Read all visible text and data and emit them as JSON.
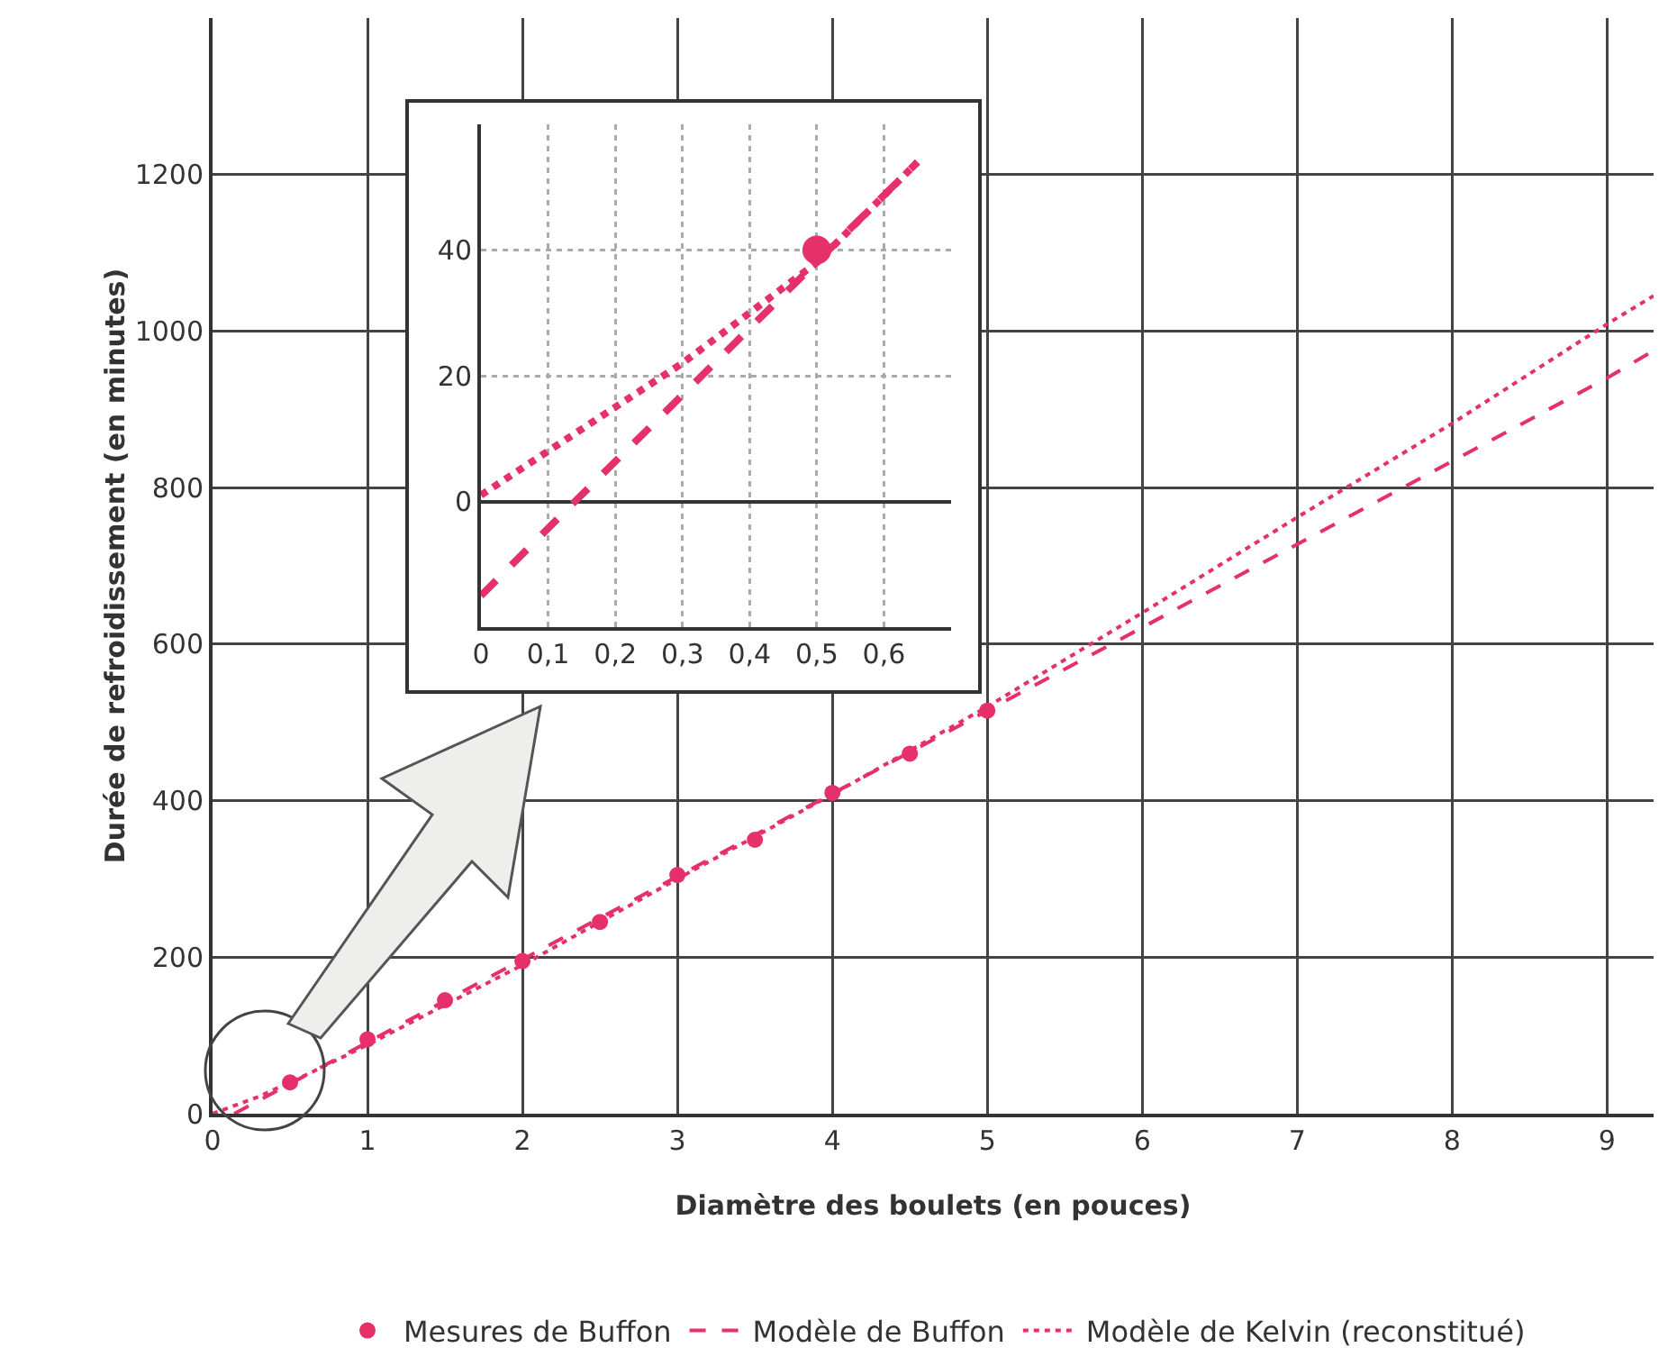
{
  "chart_data": [
    {
      "type": "line",
      "xlabel": "Diamètre des boulets (en pouces)",
      "ylabel": "Durée de refroidissement (en minutes)",
      "xlim": [
        0,
        9.3
      ],
      "xticks": [
        0,
        1,
        2,
        3,
        4,
        5,
        6,
        7,
        8,
        9
      ],
      "ylim": [
        0,
        1400
      ],
      "yticks": [
        0,
        200,
        400,
        600,
        800,
        1000,
        1200
      ],
      "grid": true,
      "legend": "bottom",
      "series": [
        {
          "name": "Mesures de Buffon",
          "type": "scatter",
          "marker": "circle",
          "color": "#e5306a",
          "x": [
            0.5,
            1,
            1.5,
            2,
            2.5,
            3,
            3.5,
            4,
            4.5,
            5
          ],
          "values": [
            40,
            95,
            145,
            195,
            245,
            305,
            350,
            410,
            460,
            515
          ]
        },
        {
          "name": "Modèle de Buffon",
          "line_style": "dashed",
          "color": "#e5306a",
          "x": [
            0.14,
            5,
            9,
            9.3
          ],
          "values": [
            0,
            515,
            940,
            975
          ]
        },
        {
          "name": "Modèle de Kelvin (reconstitué)",
          "line_style": "dotted",
          "color": "#e5306a",
          "x": [
            0,
            0.3,
            0.64,
            1,
            2,
            3,
            4,
            5,
            6,
            7,
            8,
            9,
            9.3
          ],
          "values": [
            0,
            22,
            53,
            88,
            190,
            300,
            408,
            520,
            640,
            762,
            882,
            1009,
            1045
          ]
        }
      ]
    },
    {
      "type": "line",
      "xlim": [
        0,
        0.7
      ],
      "xticks": [
        0,
        {
          "value": 0.1,
          "label": "0,1"
        },
        {
          "value": 0.2,
          "label": "0,2"
        },
        {
          "value": 0.3,
          "label": "0,3"
        },
        {
          "value": 0.4,
          "label": "0,4"
        },
        {
          "value": 0.5,
          "label": "0,5"
        },
        {
          "value": 0.6,
          "label": "0,6"
        }
      ],
      "ylim": [
        -20,
        60
      ],
      "yticks": [
        0,
        20,
        40
      ],
      "grid": true,
      "series": [
        {
          "type": "scatter",
          "marker": "circle",
          "color": "#e5306a",
          "x": [
            0.5
          ],
          "values": [
            40
          ]
        },
        {
          "line_style": "dashed",
          "color": "#e5306a",
          "x": [
            0,
            0.14,
            0.65
          ],
          "values": [
            -15,
            0,
            54
          ]
        },
        {
          "line_style": "dotted",
          "color": "#e5306a",
          "x": [
            0,
            0.1,
            0.3,
            0.5,
            0.65
          ],
          "values": [
            1,
            8,
            22,
            38,
            54
          ]
        }
      ]
    }
  ]
}
